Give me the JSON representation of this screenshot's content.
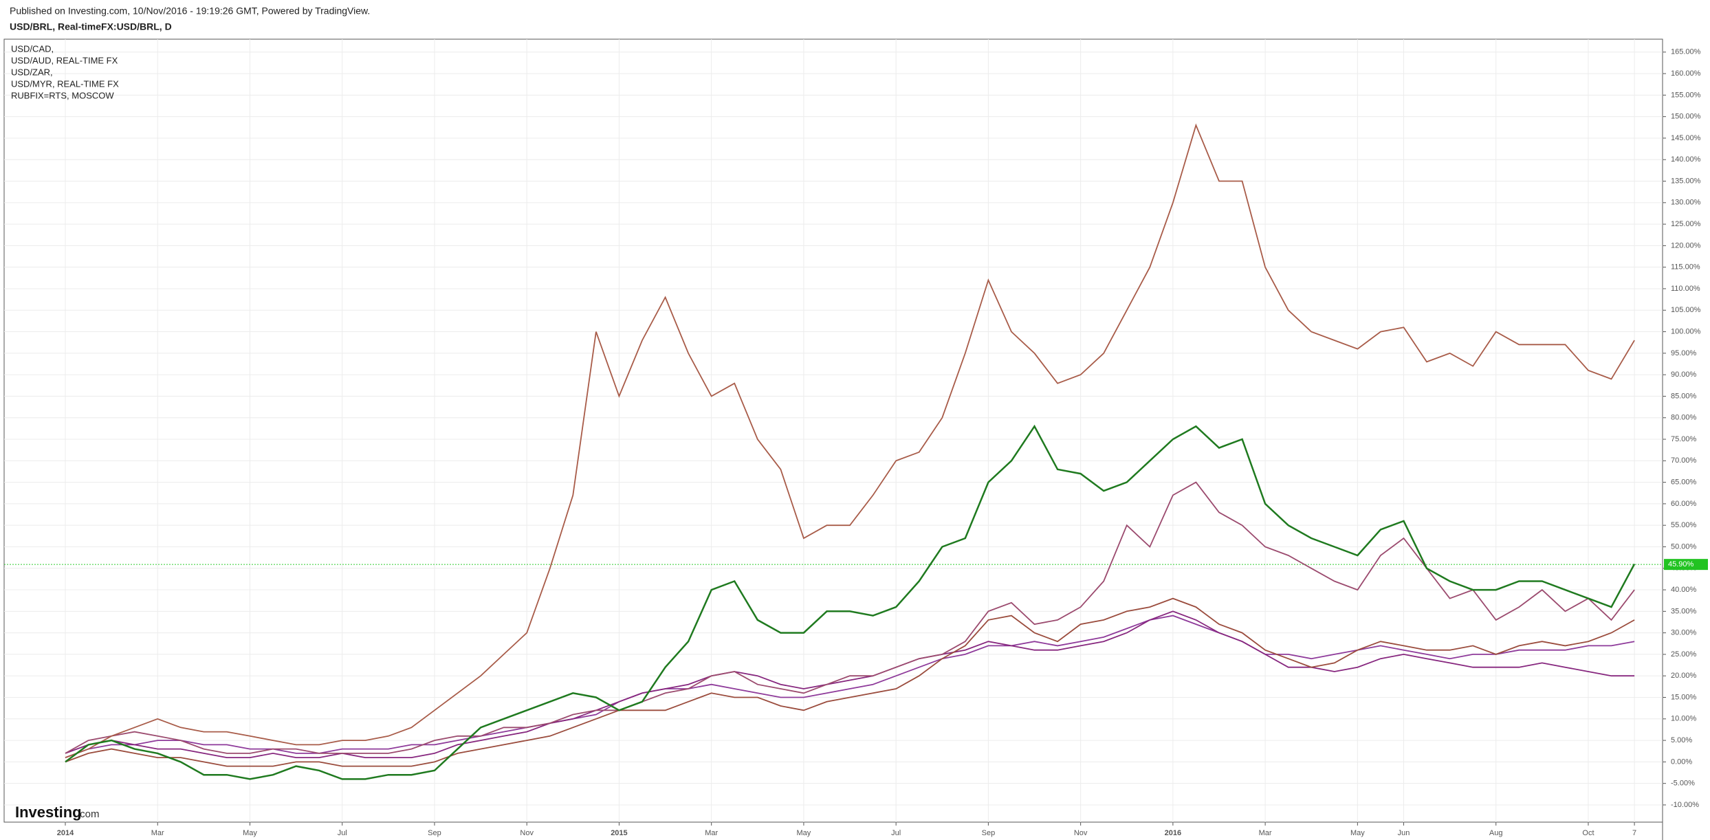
{
  "chart_data": {
    "type": "line",
    "header": "Published on Investing.com, 10/Nov/2016 - 19:19:26 GMT, Powered by TradingView.",
    "watermark": [
      "Investing",
      ".com"
    ],
    "categories": [
      "2014",
      null,
      null,
      null,
      "Mar",
      null,
      null,
      null,
      "May",
      null,
      null,
      null,
      "Jul",
      null,
      null,
      null,
      "Sep",
      null,
      null,
      null,
      "Nov",
      null,
      null,
      null,
      "2015",
      null,
      null,
      null,
      "Mar",
      null,
      null,
      null,
      "May",
      null,
      null,
      null,
      "Jul",
      null,
      null,
      null,
      "Sep",
      null,
      null,
      null,
      "Nov",
      null,
      null,
      null,
      "2016",
      null,
      null,
      null,
      "Mar",
      null,
      null,
      null,
      "May",
      null,
      "Jun",
      null,
      null,
      null,
      "Aug",
      null,
      null,
      null,
      "Oct",
      null,
      "7"
    ],
    "series": [
      {
        "name": "USD/CAD,",
        "color": "#8e3a9a",
        "values": [
          1,
          3,
          4,
          4,
          5,
          5,
          4,
          4,
          3,
          3,
          2,
          2,
          3,
          3,
          3,
          4,
          4,
          5,
          6,
          7,
          8,
          9,
          10,
          11,
          14,
          16,
          17,
          17,
          18,
          17,
          16,
          15,
          15,
          16,
          17,
          18,
          20,
          22,
          24,
          25,
          27,
          27,
          28,
          27,
          28,
          29,
          31,
          33,
          34,
          32,
          30,
          28,
          25,
          25,
          24,
          25,
          26,
          27,
          26,
          25,
          24,
          25,
          25,
          26,
          26,
          26,
          27,
          27,
          28
        ]
      },
      {
        "name": "USD/AUD, REAL-TIME FX",
        "color": "#86267e",
        "values": [
          2,
          4,
          5,
          4,
          3,
          3,
          2,
          1,
          1,
          2,
          1,
          1,
          2,
          1,
          1,
          1,
          2,
          4,
          5,
          6,
          7,
          9,
          10,
          12,
          14,
          16,
          17,
          18,
          20,
          21,
          20,
          18,
          17,
          18,
          19,
          20,
          22,
          24,
          25,
          26,
          28,
          27,
          26,
          26,
          27,
          28,
          30,
          33,
          35,
          33,
          30,
          28,
          25,
          22,
          22,
          21,
          22,
          24,
          25,
          24,
          23,
          22,
          22,
          22,
          23,
          22,
          21,
          20,
          20
        ]
      },
      {
        "name": "USD/ZAR,",
        "color": "#9b4a6e",
        "values": [
          2,
          5,
          6,
          7,
          6,
          5,
          3,
          2,
          2,
          3,
          3,
          2,
          2,
          2,
          2,
          3,
          5,
          6,
          6,
          8,
          8,
          9,
          11,
          12,
          12,
          14,
          16,
          17,
          20,
          21,
          18,
          17,
          16,
          18,
          20,
          20,
          22,
          24,
          25,
          28,
          35,
          37,
          32,
          33,
          36,
          42,
          55,
          50,
          62,
          65,
          58,
          55,
          50,
          48,
          45,
          42,
          40,
          48,
          52,
          45,
          38,
          40,
          33,
          36,
          40,
          35,
          38,
          33,
          40
        ]
      },
      {
        "name": "USD/MYR, REAL-TIME FX",
        "color": "#9a4b3c",
        "values": [
          0,
          2,
          3,
          2,
          1,
          1,
          0,
          -1,
          -1,
          -1,
          0,
          0,
          -1,
          -1,
          -1,
          -1,
          0,
          2,
          3,
          4,
          5,
          6,
          8,
          10,
          12,
          12,
          12,
          14,
          16,
          15,
          15,
          13,
          12,
          14,
          15,
          16,
          17,
          20,
          24,
          27,
          33,
          34,
          30,
          28,
          32,
          33,
          35,
          36,
          38,
          36,
          32,
          30,
          26,
          24,
          22,
          23,
          26,
          28,
          27,
          26,
          26,
          27,
          25,
          27,
          28,
          27,
          28,
          30,
          33
        ]
      },
      {
        "name": "RUBFIX=RTS, MOSCOW",
        "color": "#a85b48",
        "values": [
          1,
          3,
          6,
          8,
          10,
          8,
          7,
          7,
          6,
          5,
          4,
          4,
          5,
          5,
          6,
          8,
          12,
          16,
          20,
          25,
          30,
          45,
          62,
          100,
          85,
          98,
          108,
          95,
          85,
          88,
          75,
          68,
          52,
          55,
          55,
          62,
          70,
          72,
          80,
          95,
          112,
          100,
          95,
          88,
          90,
          95,
          105,
          115,
          130,
          148,
          135,
          135,
          115,
          105,
          100,
          98,
          96,
          100,
          101,
          93,
          95,
          92,
          100,
          97,
          97,
          97,
          91,
          89,
          98
        ]
      },
      {
        "name": "USD/BRL, Real-timeFX:USD/BRL, D",
        "color": "#1f7a1f",
        "values": [
          0,
          4,
          5,
          3,
          2,
          0,
          -3,
          -3,
          -4,
          -3,
          -1,
          -2,
          -4,
          -4,
          -3,
          -3,
          -2,
          3,
          8,
          10,
          12,
          14,
          16,
          15,
          12,
          14,
          22,
          28,
          40,
          42,
          33,
          30,
          30,
          35,
          35,
          34,
          36,
          42,
          50,
          52,
          65,
          70,
          78,
          68,
          67,
          63,
          65,
          70,
          75,
          78,
          73,
          75,
          60,
          55,
          52,
          50,
          48,
          54,
          56,
          45,
          42,
          40,
          40,
          42,
          42,
          40,
          38,
          36,
          46
        ]
      }
    ],
    "last_price": {
      "value": 45.9,
      "label": "45.90%"
    },
    "ylim": [
      -14,
      168
    ],
    "yticks": [
      {
        "value": 165,
        "label": "165.00%"
      },
      {
        "value": 160,
        "label": "160.00%"
      },
      {
        "value": 155,
        "label": "155.00%"
      },
      {
        "value": 150,
        "label": "150.00%"
      },
      {
        "value": 145,
        "label": "145.00%"
      },
      {
        "value": 140,
        "label": "140.00%"
      },
      {
        "value": 135,
        "label": "135.00%"
      },
      {
        "value": 130,
        "label": "130.00%"
      },
      {
        "value": 125,
        "label": "125.00%"
      },
      {
        "value": 120,
        "label": "120.00%"
      },
      {
        "value": 115,
        "label": "115.00%"
      },
      {
        "value": 110,
        "label": "110.00%"
      },
      {
        "value": 105,
        "label": "105.00%"
      },
      {
        "value": 100,
        "label": "100.00%"
      },
      {
        "value": 95,
        "label": "95.00%"
      },
      {
        "value": 90,
        "label": "90.00%"
      },
      {
        "value": 85,
        "label": "85.00%"
      },
      {
        "value": 80,
        "label": "80.00%"
      },
      {
        "value": 75,
        "label": "75.00%"
      },
      {
        "value": 70,
        "label": "70.00%"
      },
      {
        "value": 65,
        "label": "65.00%"
      },
      {
        "value": 60,
        "label": "60.00%"
      },
      {
        "value": 55,
        "label": "55.00%"
      },
      {
        "value": 50,
        "label": "50.00%"
      },
      {
        "value": 45,
        "label": "45.00%"
      },
      {
        "value": 40,
        "label": "40.00%"
      },
      {
        "value": 35,
        "label": "35.00%"
      },
      {
        "value": 30,
        "label": "30.00%"
      },
      {
        "value": 25,
        "label": "25.00%"
      },
      {
        "value": 20,
        "label": "20.00%"
      },
      {
        "value": 15,
        "label": "15.00%"
      },
      {
        "value": 10,
        "label": "10.00%"
      },
      {
        "value": 5,
        "label": "5.00%"
      },
      {
        "value": 0,
        "label": "0.00%"
      },
      {
        "value": -5,
        "label": "-5.00%"
      },
      {
        "value": -10,
        "label": "-10.00%"
      }
    ],
    "grid": true
  }
}
